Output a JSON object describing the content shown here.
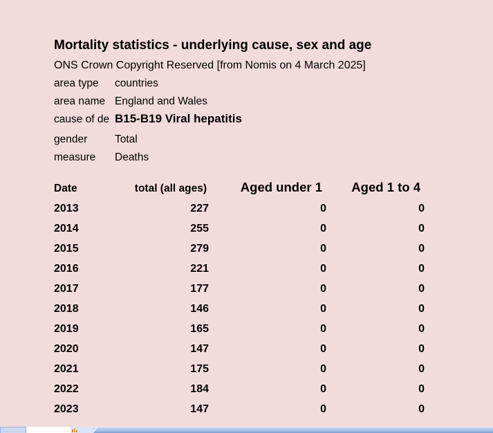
{
  "window": {
    "bg_color": "#f2dcdb"
  },
  "report": {
    "title": "Mortality statistics - underlying cause, sex and age",
    "copyright_line": "ONS Crown Copyright Reserved [from Nomis on 4 March 2025]",
    "meta_rows": [
      {
        "label": "area type",
        "value": "countries"
      },
      {
        "label": "area name",
        "value": "England and Wales"
      },
      {
        "label": "cause of de",
        "value": "B15-B19 Viral hepatitis"
      },
      {
        "label": "gender",
        "value": "Total"
      },
      {
        "label": "measure",
        "value": "Deaths"
      }
    ]
  },
  "chart_data": {
    "type": "table",
    "title": "Mortality statistics - underlying cause, sex and age",
    "columns": [
      "Date",
      "total (all ages)",
      "Aged under 1",
      "Aged 1 to 4"
    ],
    "rows": [
      [
        "2013",
        "227",
        "0",
        "0"
      ],
      [
        "2014",
        "255",
        "0",
        "0"
      ],
      [
        "2015",
        "279",
        "0",
        "0"
      ],
      [
        "2016",
        "221",
        "0",
        "0"
      ],
      [
        "2017",
        "177",
        "0",
        "0"
      ],
      [
        "2018",
        "146",
        "0",
        "0"
      ],
      [
        "2019",
        "165",
        "0",
        "0"
      ],
      [
        "2020",
        "147",
        "0",
        "0"
      ],
      [
        "2021",
        "175",
        "0",
        "0"
      ],
      [
        "2022",
        "184",
        "0",
        "0"
      ],
      [
        "2023",
        "147",
        "0",
        "0"
      ]
    ]
  },
  "sheet_bar": {
    "accent_orange": "#e8a33d",
    "bar_top_color": "#cdd9f1",
    "bar_bottom_color": "#7e9fd3",
    "active_tab_color": "#ffffff"
  }
}
